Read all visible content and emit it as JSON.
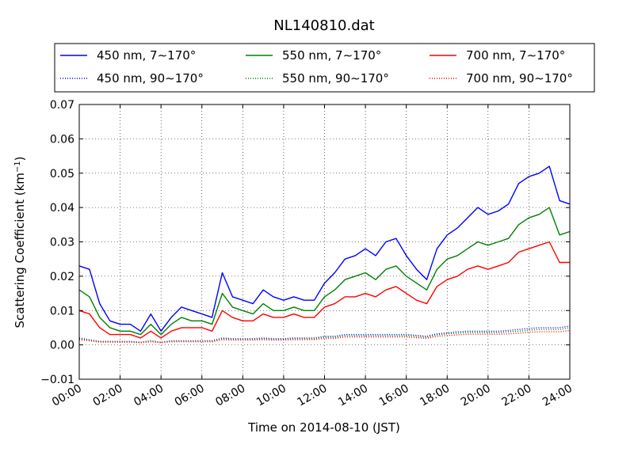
{
  "chart_data": {
    "type": "line",
    "title": "NL140810.dat",
    "xlabel": "Time on 2014-08-10 (JST)",
    "ylabel": "Scattering Coefficient (km",
    "ylabel_exponent": "−1",
    "ylabel_close": ")",
    "x_unit": "hour",
    "xlim": [
      0,
      24
    ],
    "ylim": [
      -0.01,
      0.07
    ],
    "grid": true,
    "legend_position": "top",
    "x_ticks": [
      {
        "value": 0,
        "label": "00:00"
      },
      {
        "value": 2,
        "label": "02:00"
      },
      {
        "value": 4,
        "label": "04:00"
      },
      {
        "value": 6,
        "label": "06:00"
      },
      {
        "value": 8,
        "label": "08:00"
      },
      {
        "value": 10,
        "label": "10:00"
      },
      {
        "value": 12,
        "label": "12:00"
      },
      {
        "value": 14,
        "label": "14:00"
      },
      {
        "value": 16,
        "label": "16:00"
      },
      {
        "value": 18,
        "label": "18:00"
      },
      {
        "value": 20,
        "label": "20:00"
      },
      {
        "value": 22,
        "label": "22:00"
      },
      {
        "value": 24,
        "label": "24:00"
      }
    ],
    "y_ticks": [
      {
        "value": -0.01,
        "label": "−0.01"
      },
      {
        "value": 0.0,
        "label": "0.00"
      },
      {
        "value": 0.01,
        "label": "0.01"
      },
      {
        "value": 0.02,
        "label": "0.02"
      },
      {
        "value": 0.03,
        "label": "0.03"
      },
      {
        "value": 0.04,
        "label": "0.04"
      },
      {
        "value": 0.05,
        "label": "0.05"
      },
      {
        "value": 0.06,
        "label": "0.06"
      },
      {
        "value": 0.07,
        "label": "0.07"
      }
    ],
    "x": [
      0,
      0.5,
      1,
      1.5,
      2,
      2.5,
      3,
      3.5,
      4,
      4.5,
      5,
      5.5,
      6,
      6.5,
      7,
      7.5,
      8,
      8.5,
      9,
      9.5,
      10,
      10.5,
      11,
      11.5,
      12,
      12.5,
      13,
      13.5,
      14,
      14.5,
      15,
      15.5,
      16,
      16.5,
      17,
      17.5,
      18,
      18.5,
      19,
      19.5,
      20,
      20.5,
      21,
      21.5,
      22,
      22.5,
      23,
      23.5,
      24
    ],
    "series": [
      {
        "name": "450 nm, 7∼170°",
        "color": "#0000ff",
        "style": "solid",
        "values": [
          0.023,
          0.022,
          0.012,
          0.007,
          0.006,
          0.006,
          0.004,
          0.009,
          0.004,
          0.008,
          0.011,
          0.01,
          0.009,
          0.008,
          0.021,
          0.014,
          0.013,
          0.012,
          0.016,
          0.014,
          0.013,
          0.014,
          0.013,
          0.013,
          0.018,
          0.021,
          0.025,
          0.026,
          0.028,
          0.026,
          0.03,
          0.031,
          0.026,
          0.022,
          0.019,
          0.028,
          0.032,
          0.034,
          0.037,
          0.04,
          0.038,
          0.039,
          0.041,
          0.047,
          0.049,
          0.05,
          0.052,
          0.042,
          0.041
        ]
      },
      {
        "name": "550 nm, 7∼170°",
        "color": "#008000",
        "style": "solid",
        "values": [
          0.016,
          0.014,
          0.008,
          0.005,
          0.004,
          0.004,
          0.003,
          0.006,
          0.003,
          0.006,
          0.008,
          0.007,
          0.007,
          0.006,
          0.015,
          0.011,
          0.01,
          0.009,
          0.012,
          0.01,
          0.01,
          0.011,
          0.01,
          0.01,
          0.014,
          0.016,
          0.019,
          0.02,
          0.021,
          0.019,
          0.022,
          0.023,
          0.02,
          0.018,
          0.016,
          0.022,
          0.025,
          0.026,
          0.028,
          0.03,
          0.029,
          0.03,
          0.031,
          0.035,
          0.037,
          0.038,
          0.04,
          0.032,
          0.033
        ]
      },
      {
        "name": "700 nm, 7∼170°",
        "color": "#ff0000",
        "style": "solid",
        "values": [
          0.01,
          0.009,
          0.005,
          0.003,
          0.003,
          0.003,
          0.002,
          0.004,
          0.002,
          0.004,
          0.005,
          0.005,
          0.005,
          0.004,
          0.01,
          0.008,
          0.007,
          0.007,
          0.009,
          0.008,
          0.008,
          0.009,
          0.008,
          0.008,
          0.011,
          0.012,
          0.014,
          0.014,
          0.015,
          0.014,
          0.016,
          0.017,
          0.015,
          0.013,
          0.012,
          0.017,
          0.019,
          0.02,
          0.022,
          0.023,
          0.022,
          0.023,
          0.024,
          0.027,
          0.028,
          0.029,
          0.03,
          0.024,
          0.024
        ]
      },
      {
        "name": "450 nm, 90∼170°",
        "color": "#0000ff",
        "style": "dotted",
        "values": [
          0.002,
          0.0015,
          0.001,
          0.001,
          0.001,
          0.001,
          0.0008,
          0.0012,
          0.0008,
          0.0012,
          0.0012,
          0.0012,
          0.0012,
          0.0012,
          0.002,
          0.0018,
          0.0018,
          0.0018,
          0.002,
          0.0018,
          0.0018,
          0.002,
          0.002,
          0.002,
          0.0025,
          0.0025,
          0.003,
          0.003,
          0.003,
          0.003,
          0.003,
          0.003,
          0.003,
          0.0028,
          0.0025,
          0.0032,
          0.0035,
          0.0038,
          0.004,
          0.004,
          0.004,
          0.004,
          0.0042,
          0.0045,
          0.0048,
          0.005,
          0.005,
          0.005,
          0.0055
        ]
      },
      {
        "name": "550 nm, 90∼170°",
        "color": "#008000",
        "style": "dotted",
        "values": [
          0.0018,
          0.0014,
          0.001,
          0.0009,
          0.0009,
          0.0009,
          0.0007,
          0.0011,
          0.0007,
          0.0011,
          0.0011,
          0.0011,
          0.0011,
          0.0011,
          0.0018,
          0.0016,
          0.0016,
          0.0016,
          0.0018,
          0.0016,
          0.0016,
          0.0018,
          0.0018,
          0.0018,
          0.0022,
          0.0022,
          0.0027,
          0.0027,
          0.0027,
          0.0027,
          0.0027,
          0.0027,
          0.0027,
          0.0025,
          0.0022,
          0.0029,
          0.0032,
          0.0034,
          0.0036,
          0.0036,
          0.0036,
          0.0036,
          0.0038,
          0.004,
          0.0043,
          0.0045,
          0.0045,
          0.0045,
          0.005
        ]
      },
      {
        "name": "700 nm, 90∼170°",
        "color": "#ff0000",
        "style": "dotted",
        "values": [
          0.0015,
          0.0012,
          0.0008,
          0.0008,
          0.0008,
          0.0008,
          0.0006,
          0.0009,
          0.0006,
          0.0009,
          0.0009,
          0.0009,
          0.0009,
          0.0009,
          0.0015,
          0.0014,
          0.0014,
          0.0014,
          0.0015,
          0.0014,
          0.0014,
          0.0015,
          0.0015,
          0.0015,
          0.0019,
          0.0019,
          0.0023,
          0.0023,
          0.0023,
          0.0023,
          0.0023,
          0.0023,
          0.0023,
          0.0021,
          0.0019,
          0.0025,
          0.0027,
          0.0029,
          0.0031,
          0.0031,
          0.0031,
          0.0031,
          0.0032,
          0.0034,
          0.0037,
          0.0038,
          0.0038,
          0.0038,
          0.0042
        ]
      }
    ]
  }
}
